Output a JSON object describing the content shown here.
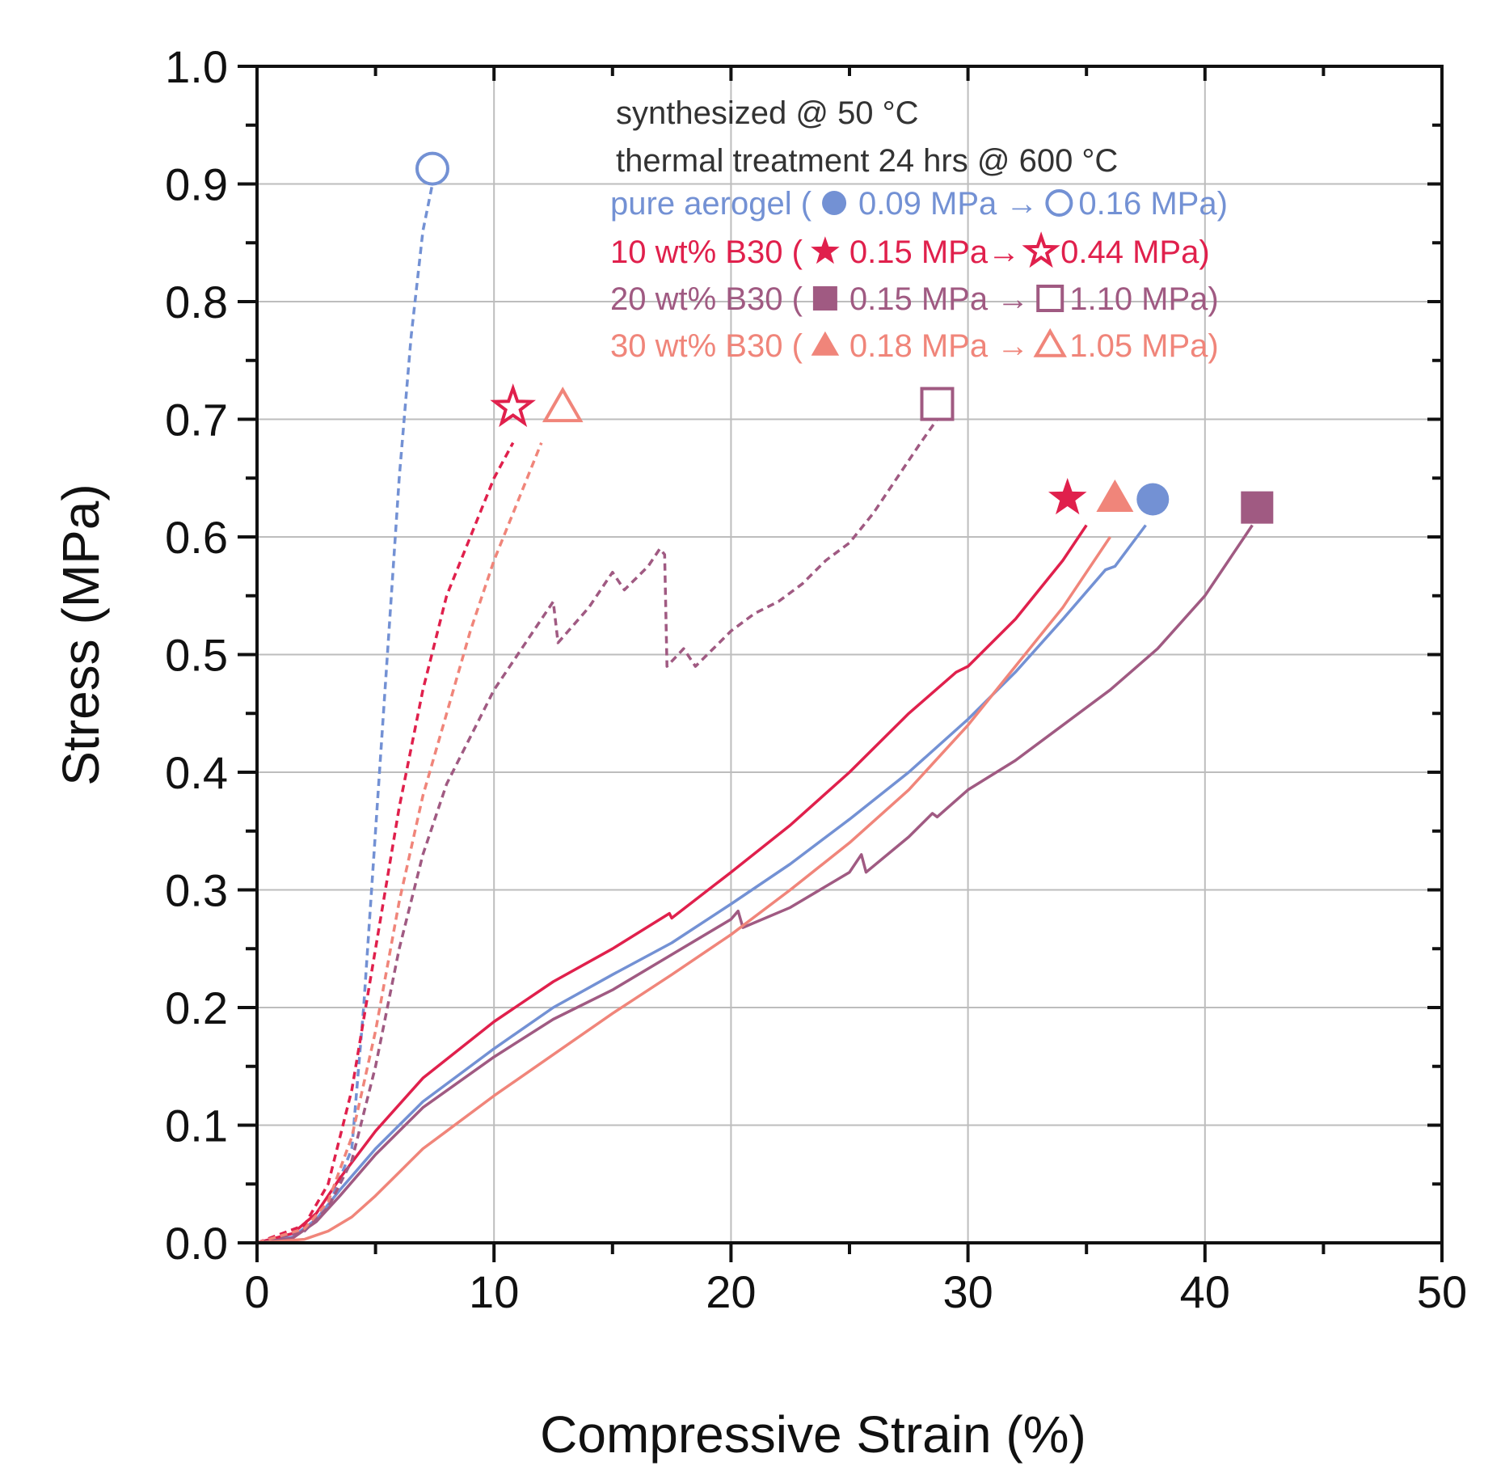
{
  "chart_data": {
    "type": "line",
    "title": "",
    "xlabel": "Compressive Strain (%)",
    "ylabel": "Stress (MPa)",
    "xlim": [
      0,
      50
    ],
    "ylim": [
      0,
      1.0
    ],
    "x_ticks": [
      0,
      10,
      20,
      30,
      40,
      50
    ],
    "x_tick_labels": [
      "0",
      "10",
      "20",
      "30",
      "40",
      "50"
    ],
    "y_ticks": [
      0,
      0.1,
      0.2,
      0.3,
      0.4,
      0.5,
      0.6,
      0.7,
      0.8,
      0.9,
      1.0
    ],
    "y_tick_labels": [
      "0.0",
      "0.1",
      "0.2",
      "0.3",
      "0.4",
      "0.5",
      "0.6",
      "0.7",
      "0.8",
      "0.9",
      "1.0"
    ],
    "grid": true,
    "annotations": [
      "synthesized @ 50 °C",
      "thermal treatment 24 hrs @ 600 °C"
    ],
    "legend_position": "top-right",
    "series": [
      {
        "name": "pure aerogel",
        "legend_prefix": "pure aerogel (",
        "legend_before": "0.09 MPa →",
        "legend_after": "0.16 MPa)",
        "color": "#7391d4",
        "marker": "circle",
        "solid": [
          [
            0,
            0
          ],
          [
            1.5,
            0.005
          ],
          [
            2.5,
            0.02
          ],
          [
            3.5,
            0.045
          ],
          [
            5,
            0.08
          ],
          [
            7,
            0.12
          ],
          [
            10,
            0.165
          ],
          [
            12.5,
            0.2
          ],
          [
            15,
            0.228
          ],
          [
            17.5,
            0.255
          ],
          [
            20,
            0.288
          ],
          [
            22.5,
            0.322
          ],
          [
            25,
            0.36
          ],
          [
            27.5,
            0.4
          ],
          [
            30,
            0.445
          ],
          [
            32,
            0.485
          ],
          [
            34,
            0.53
          ],
          [
            35.8,
            0.572
          ],
          [
            36.2,
            0.575
          ],
          [
            37.5,
            0.61
          ]
        ],
        "solid_marker": [
          37.8,
          0.632
        ],
        "dashed": [
          [
            0,
            0
          ],
          [
            2,
            0.01
          ],
          [
            3,
            0.03
          ],
          [
            4,
            0.08
          ],
          [
            4.5,
            0.2
          ],
          [
            5,
            0.35
          ],
          [
            5.5,
            0.5
          ],
          [
            6,
            0.65
          ],
          [
            6.5,
            0.77
          ],
          [
            7,
            0.86
          ],
          [
            7.4,
            0.9
          ]
        ],
        "dashed_marker": [
          7.4,
          0.913
        ]
      },
      {
        "name": "10 wt% B30",
        "legend_prefix": "10 wt% B30 (",
        "legend_before": "0.15 MPa→",
        "legend_after": "0.44 MPa)",
        "color": "#e0204c",
        "marker": "star",
        "solid": [
          [
            0,
            0
          ],
          [
            1.5,
            0.008
          ],
          [
            2.5,
            0.025
          ],
          [
            3.5,
            0.055
          ],
          [
            5,
            0.095
          ],
          [
            7,
            0.14
          ],
          [
            10,
            0.188
          ],
          [
            12.5,
            0.222
          ],
          [
            15,
            0.25
          ],
          [
            17.4,
            0.28
          ],
          [
            17.5,
            0.276
          ],
          [
            20,
            0.315
          ],
          [
            22.5,
            0.355
          ],
          [
            25,
            0.4
          ],
          [
            27.5,
            0.45
          ],
          [
            29.5,
            0.485
          ],
          [
            30,
            0.49
          ],
          [
            32,
            0.53
          ],
          [
            34,
            0.58
          ],
          [
            35,
            0.61
          ]
        ],
        "solid_marker": [
          34.2,
          0.633
        ],
        "dashed": [
          [
            0,
            0
          ],
          [
            2,
            0.015
          ],
          [
            3,
            0.05
          ],
          [
            4,
            0.13
          ],
          [
            5,
            0.25
          ],
          [
            6,
            0.37
          ],
          [
            7,
            0.47
          ],
          [
            8,
            0.55
          ],
          [
            9,
            0.6
          ],
          [
            10,
            0.65
          ],
          [
            10.8,
            0.68
          ]
        ],
        "dashed_marker": [
          10.8,
          0.71
        ]
      },
      {
        "name": "20 wt% B30",
        "legend_prefix": "20 wt% B30 (",
        "legend_before": "0.15 MPa →",
        "legend_after": "1.10 MPa)",
        "color": "#a05a82",
        "marker": "square",
        "solid": [
          [
            0,
            0
          ],
          [
            1.5,
            0.004
          ],
          [
            2.5,
            0.018
          ],
          [
            3.5,
            0.04
          ],
          [
            5,
            0.075
          ],
          [
            7,
            0.115
          ],
          [
            10,
            0.158
          ],
          [
            12.5,
            0.19
          ],
          [
            15,
            0.215
          ],
          [
            17.5,
            0.245
          ],
          [
            20,
            0.275
          ],
          [
            20.3,
            0.282
          ],
          [
            20.5,
            0.268
          ],
          [
            22.5,
            0.285
          ],
          [
            25,
            0.315
          ],
          [
            25.5,
            0.33
          ],
          [
            25.7,
            0.315
          ],
          [
            27.5,
            0.345
          ],
          [
            28.5,
            0.365
          ],
          [
            28.7,
            0.362
          ],
          [
            30,
            0.385
          ],
          [
            32,
            0.41
          ],
          [
            34,
            0.44
          ],
          [
            36,
            0.47
          ],
          [
            38,
            0.505
          ],
          [
            40,
            0.55
          ],
          [
            42,
            0.61
          ]
        ],
        "solid_marker": [
          42.2,
          0.625
        ],
        "dashed": [
          [
            0,
            0
          ],
          [
            2,
            0.01
          ],
          [
            3,
            0.03
          ],
          [
            4,
            0.07
          ],
          [
            5,
            0.15
          ],
          [
            6,
            0.25
          ],
          [
            7,
            0.33
          ],
          [
            8,
            0.39
          ],
          [
            9,
            0.43
          ],
          [
            10,
            0.47
          ],
          [
            11,
            0.5
          ],
          [
            12,
            0.53
          ],
          [
            12.5,
            0.545
          ],
          [
            12.7,
            0.51
          ],
          [
            14,
            0.54
          ],
          [
            15,
            0.57
          ],
          [
            15.5,
            0.555
          ],
          [
            16.5,
            0.575
          ],
          [
            17,
            0.59
          ],
          [
            17.2,
            0.585
          ],
          [
            17.3,
            0.49
          ],
          [
            18,
            0.505
          ],
          [
            18.5,
            0.49
          ],
          [
            19,
            0.5
          ],
          [
            20,
            0.52
          ],
          [
            21,
            0.535
          ],
          [
            22,
            0.545
          ],
          [
            23,
            0.56
          ],
          [
            24,
            0.58
          ],
          [
            25,
            0.595
          ],
          [
            26,
            0.62
          ],
          [
            27,
            0.65
          ],
          [
            28,
            0.68
          ],
          [
            28.7,
            0.7
          ]
        ],
        "dashed_marker": [
          28.7,
          0.713
        ]
      },
      {
        "name": "30 wt% B30",
        "legend_prefix": "30 wt% B30 (",
        "legend_before": "0.18 MPa →",
        "legend_after": "1.05 MPa)",
        "color": "#f0857a",
        "marker": "triangle",
        "solid": [
          [
            0,
            0
          ],
          [
            2,
            0.003
          ],
          [
            3,
            0.01
          ],
          [
            4,
            0.022
          ],
          [
            5,
            0.04
          ],
          [
            6,
            0.06
          ],
          [
            7,
            0.08
          ],
          [
            8,
            0.095
          ],
          [
            10,
            0.125
          ],
          [
            12.5,
            0.16
          ],
          [
            15,
            0.195
          ],
          [
            17.5,
            0.228
          ],
          [
            20,
            0.262
          ],
          [
            22.5,
            0.3
          ],
          [
            25,
            0.34
          ],
          [
            27.5,
            0.385
          ],
          [
            30,
            0.44
          ],
          [
            32,
            0.49
          ],
          [
            34,
            0.54
          ],
          [
            36,
            0.6
          ]
        ],
        "solid_marker": [
          36.2,
          0.633
        ],
        "dashed": [
          [
            0,
            0
          ],
          [
            2,
            0.012
          ],
          [
            3,
            0.035
          ],
          [
            4,
            0.09
          ],
          [
            5,
            0.18
          ],
          [
            6,
            0.29
          ],
          [
            7,
            0.38
          ],
          [
            8,
            0.45
          ],
          [
            9,
            0.52
          ],
          [
            10,
            0.58
          ],
          [
            11,
            0.63
          ],
          [
            12,
            0.68
          ]
        ],
        "dashed_marker": [
          12.9,
          0.71
        ]
      }
    ]
  }
}
